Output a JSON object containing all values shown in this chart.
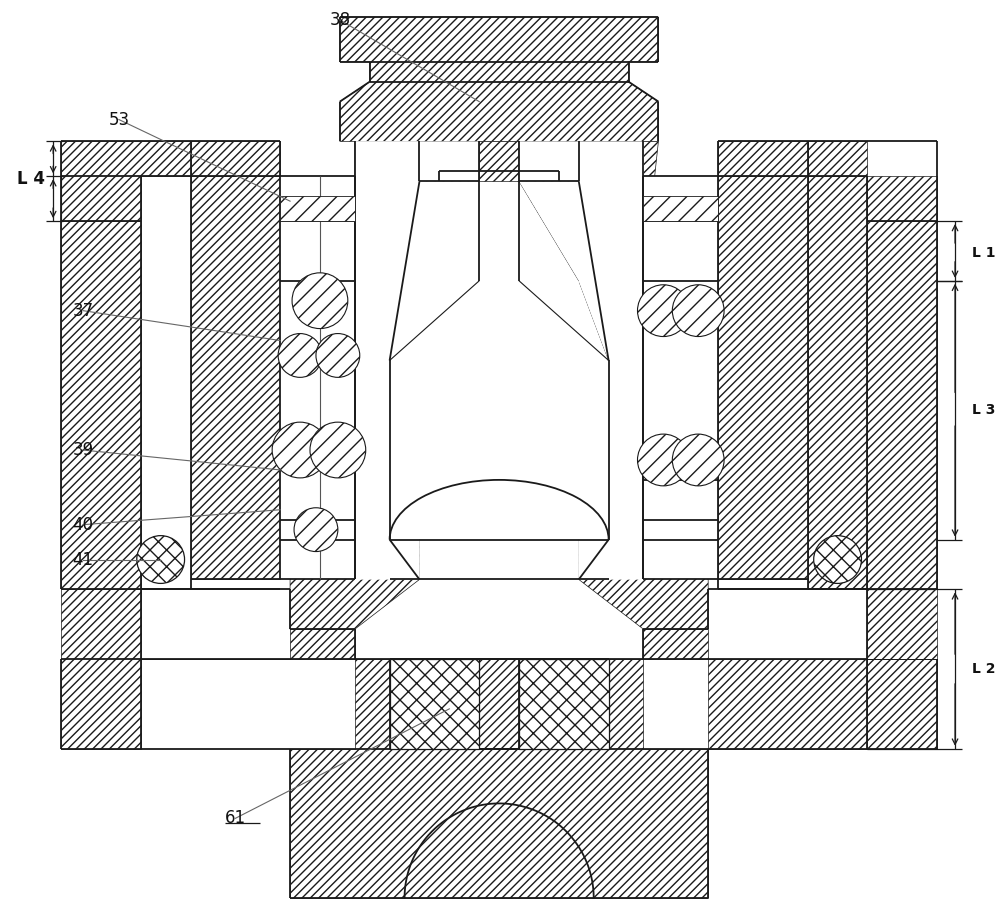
{
  "bg": "#ffffff",
  "lc": "#1a1a1a",
  "lw": 1.3,
  "lw2": 0.8,
  "fs": 12,
  "figsize": [
    10.0,
    9.1
  ],
  "dpi": 100
}
